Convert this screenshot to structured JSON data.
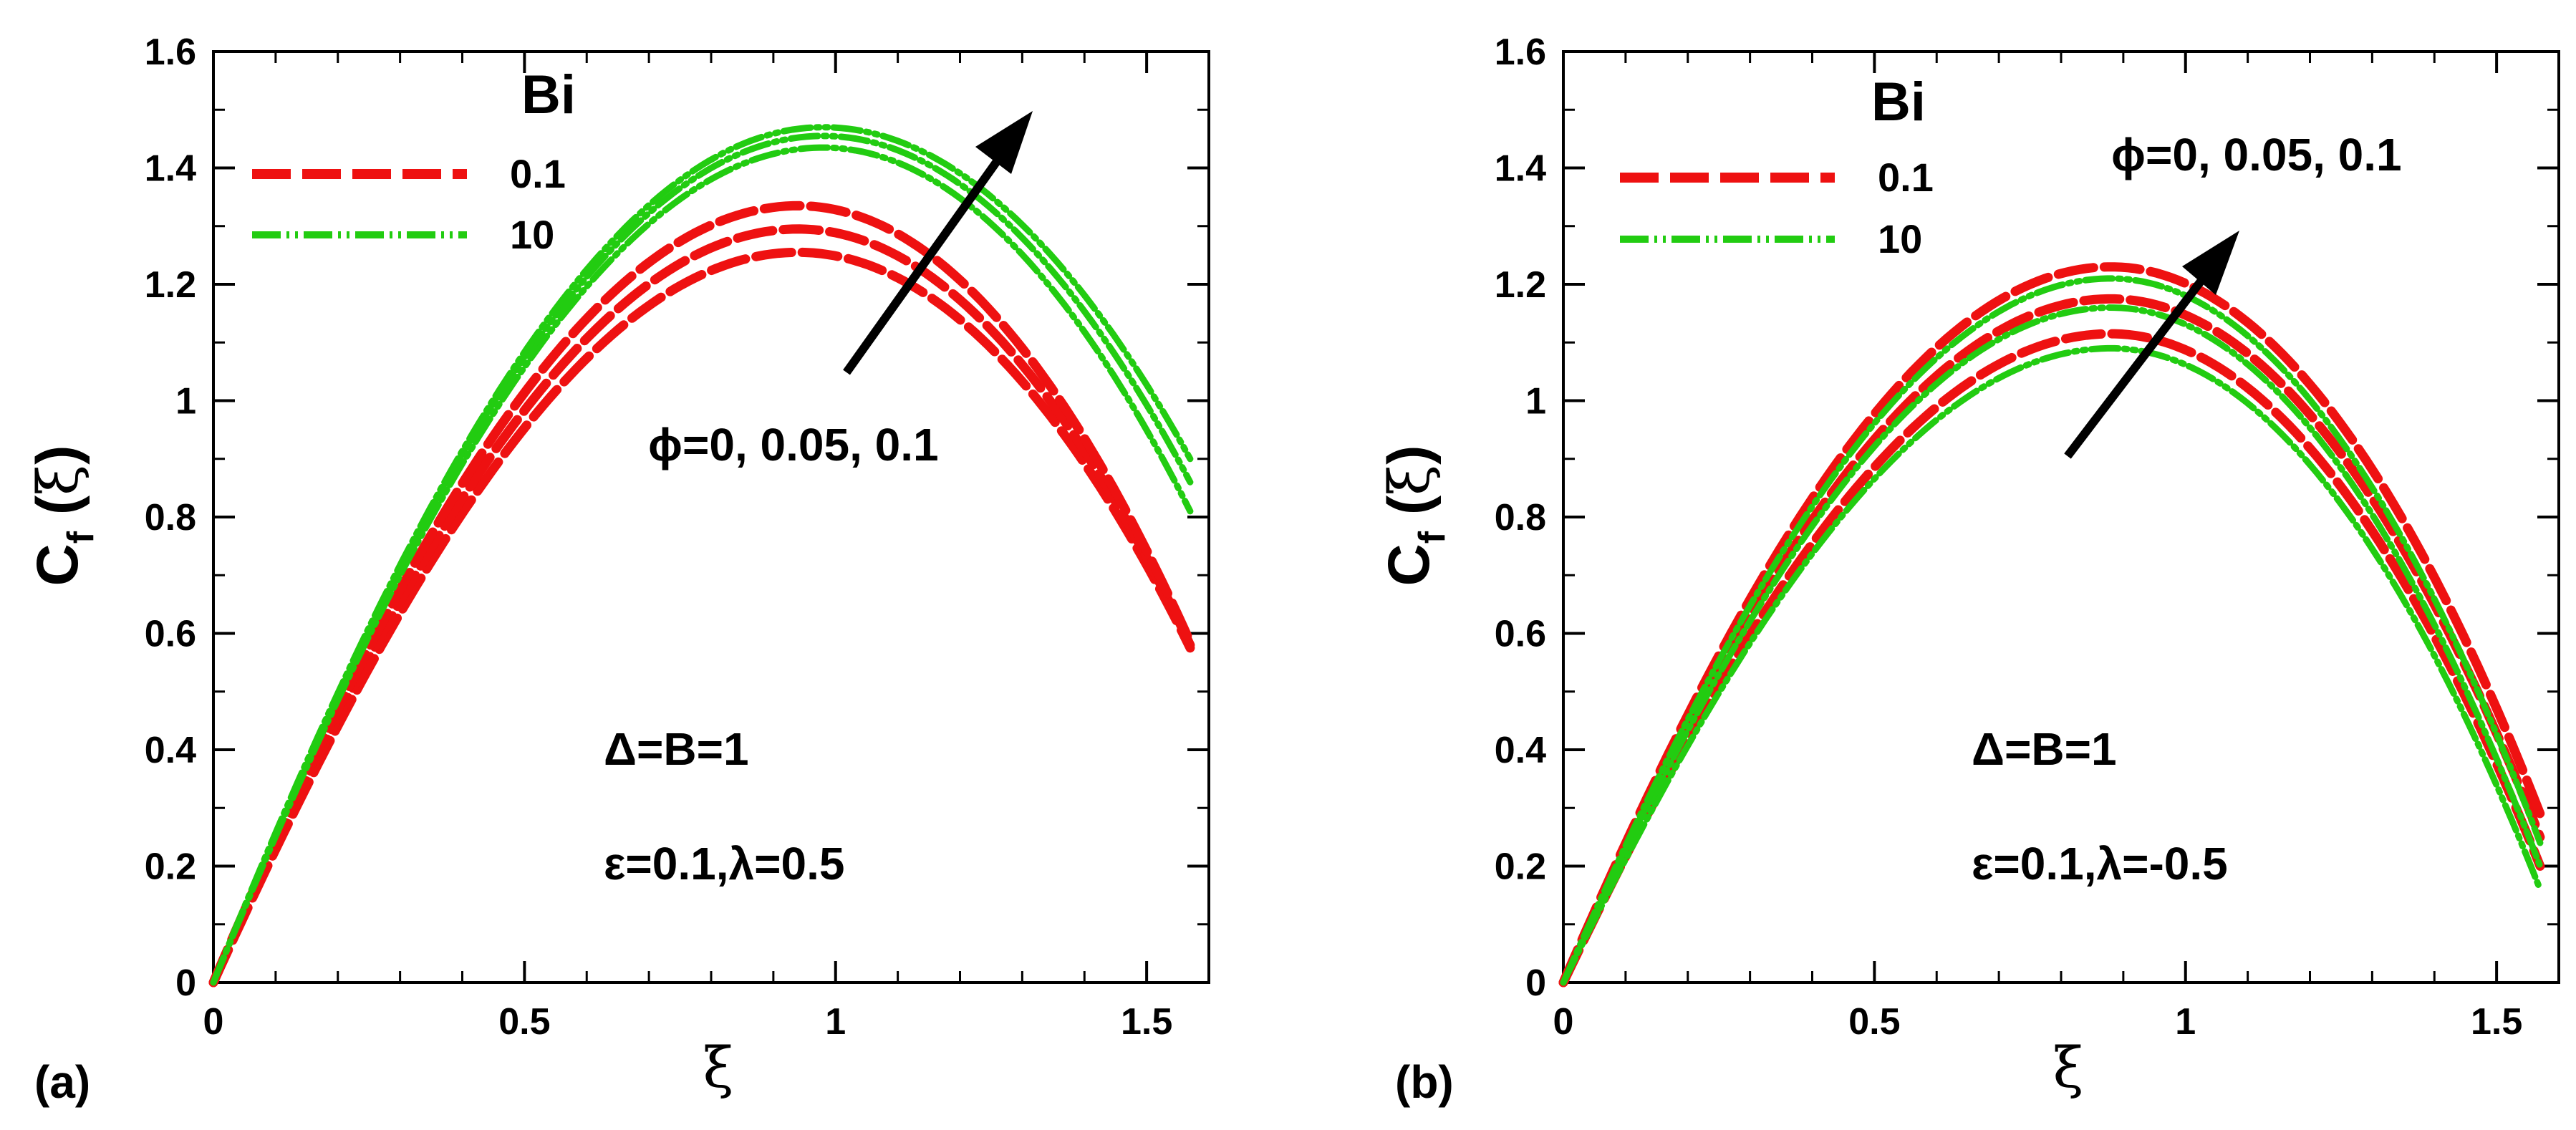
{
  "chart_data": [
    {
      "type": "line",
      "panel_label": "(a)",
      "xlabel": "ξ",
      "ylabel": "C_f (ξ)",
      "xlim": [
        0,
        1.6
      ],
      "ylim": [
        0,
        1.6
      ],
      "xticks": [
        0,
        0.5,
        1,
        1.5
      ],
      "xtick_labels": [
        "0",
        "0.5",
        "1",
        "1.5"
      ],
      "yticks": [
        0,
        0.2,
        0.4,
        0.6,
        0.8,
        1,
        1.2,
        1.4,
        1.6
      ],
      "ytick_labels": [
        "0",
        "0.2",
        "0.4",
        "0.6",
        "0.8",
        "1",
        "1.2",
        "1.4",
        "1.6"
      ],
      "legend": {
        "title": "Bi",
        "position": "top-left",
        "entries": [
          {
            "label": "0.1",
            "color": "#ee1111",
            "style": "dashed"
          },
          {
            "label": "10",
            "color": "#22cc11",
            "style": "dash-dot-dot"
          }
        ]
      },
      "annotations": {
        "arrow_label": "ϕ=0, 0.05, 0.1",
        "param1": "Δ=B=1",
        "param2": "ε=0.1,λ=0.5"
      },
      "series": [
        {
          "name": "Bi=0.1, ϕ=0",
          "group": "0.1",
          "peak_x": 0.94,
          "peak_y": 1.255,
          "end_x": 1.57,
          "end_y": 0.575
        },
        {
          "name": "Bi=0.1, ϕ=0.05",
          "group": "0.1",
          "peak_x": 0.94,
          "peak_y": 1.295,
          "end_x": 1.57,
          "end_y": 0.58
        },
        {
          "name": "Bi=0.1, ϕ=0.1",
          "group": "0.1",
          "peak_x": 0.94,
          "peak_y": 1.335,
          "end_x": 1.57,
          "end_y": 0.585
        },
        {
          "name": "Bi=10, ϕ=0",
          "group": "10",
          "peak_x": 0.98,
          "peak_y": 1.435,
          "end_x": 1.57,
          "end_y": 0.81
        },
        {
          "name": "Bi=10, ϕ=0.05",
          "group": "10",
          "peak_x": 0.98,
          "peak_y": 1.455,
          "end_x": 1.57,
          "end_y": 0.86
        },
        {
          "name": "Bi=10, ϕ=0.1",
          "group": "10",
          "peak_x": 0.98,
          "peak_y": 1.47,
          "end_x": 1.57,
          "end_y": 0.9
        }
      ]
    },
    {
      "type": "line",
      "panel_label": "(b)",
      "xlabel": "ξ",
      "ylabel": "C_f (ξ)",
      "xlim": [
        0,
        1.6
      ],
      "ylim": [
        0,
        1.6
      ],
      "xticks": [
        0,
        0.5,
        1,
        1.5
      ],
      "xtick_labels": [
        "0",
        "0.5",
        "1",
        "1.5"
      ],
      "yticks": [
        0,
        0.2,
        0.4,
        0.6,
        0.8,
        1,
        1.2,
        1.4,
        1.6
      ],
      "ytick_labels": [
        "0",
        "0.2",
        "0.4",
        "0.6",
        "0.8",
        "1",
        "1.2",
        "1.4",
        "1.6"
      ],
      "legend": {
        "title": "Bi",
        "position": "top-left",
        "entries": [
          {
            "label": "0.1",
            "color": "#ee1111",
            "style": "dashed"
          },
          {
            "label": "10",
            "color": "#22cc11",
            "style": "dash-dot-dot"
          }
        ]
      },
      "annotations": {
        "arrow_label": "ϕ=0, 0.05, 0.1",
        "param1": "Δ=B=1",
        "param2": "ε=0.1,λ=-0.5"
      },
      "series": [
        {
          "name": "Bi=0.1, ϕ=0",
          "group": "0.1",
          "peak_x": 0.88,
          "peak_y": 1.115,
          "end_x": 1.57,
          "end_y": 0.2
        },
        {
          "name": "Bi=0.1, ϕ=0.05",
          "group": "0.1",
          "peak_x": 0.88,
          "peak_y": 1.175,
          "end_x": 1.57,
          "end_y": 0.25
        },
        {
          "name": "Bi=0.1, ϕ=0.1",
          "group": "0.1",
          "peak_x": 0.88,
          "peak_y": 1.23,
          "end_x": 1.57,
          "end_y": 0.29
        },
        {
          "name": "Bi=10, ϕ=0",
          "group": "10",
          "peak_x": 0.88,
          "peak_y": 1.09,
          "end_x": 1.57,
          "end_y": 0.16
        },
        {
          "name": "Bi=10, ϕ=0.05",
          "group": "10",
          "peak_x": 0.88,
          "peak_y": 1.16,
          "end_x": 1.57,
          "end_y": 0.2
        },
        {
          "name": "Bi=10, ϕ=0.1",
          "group": "10",
          "peak_x": 0.88,
          "peak_y": 1.21,
          "end_x": 1.57,
          "end_y": 0.24
        }
      ]
    }
  ]
}
